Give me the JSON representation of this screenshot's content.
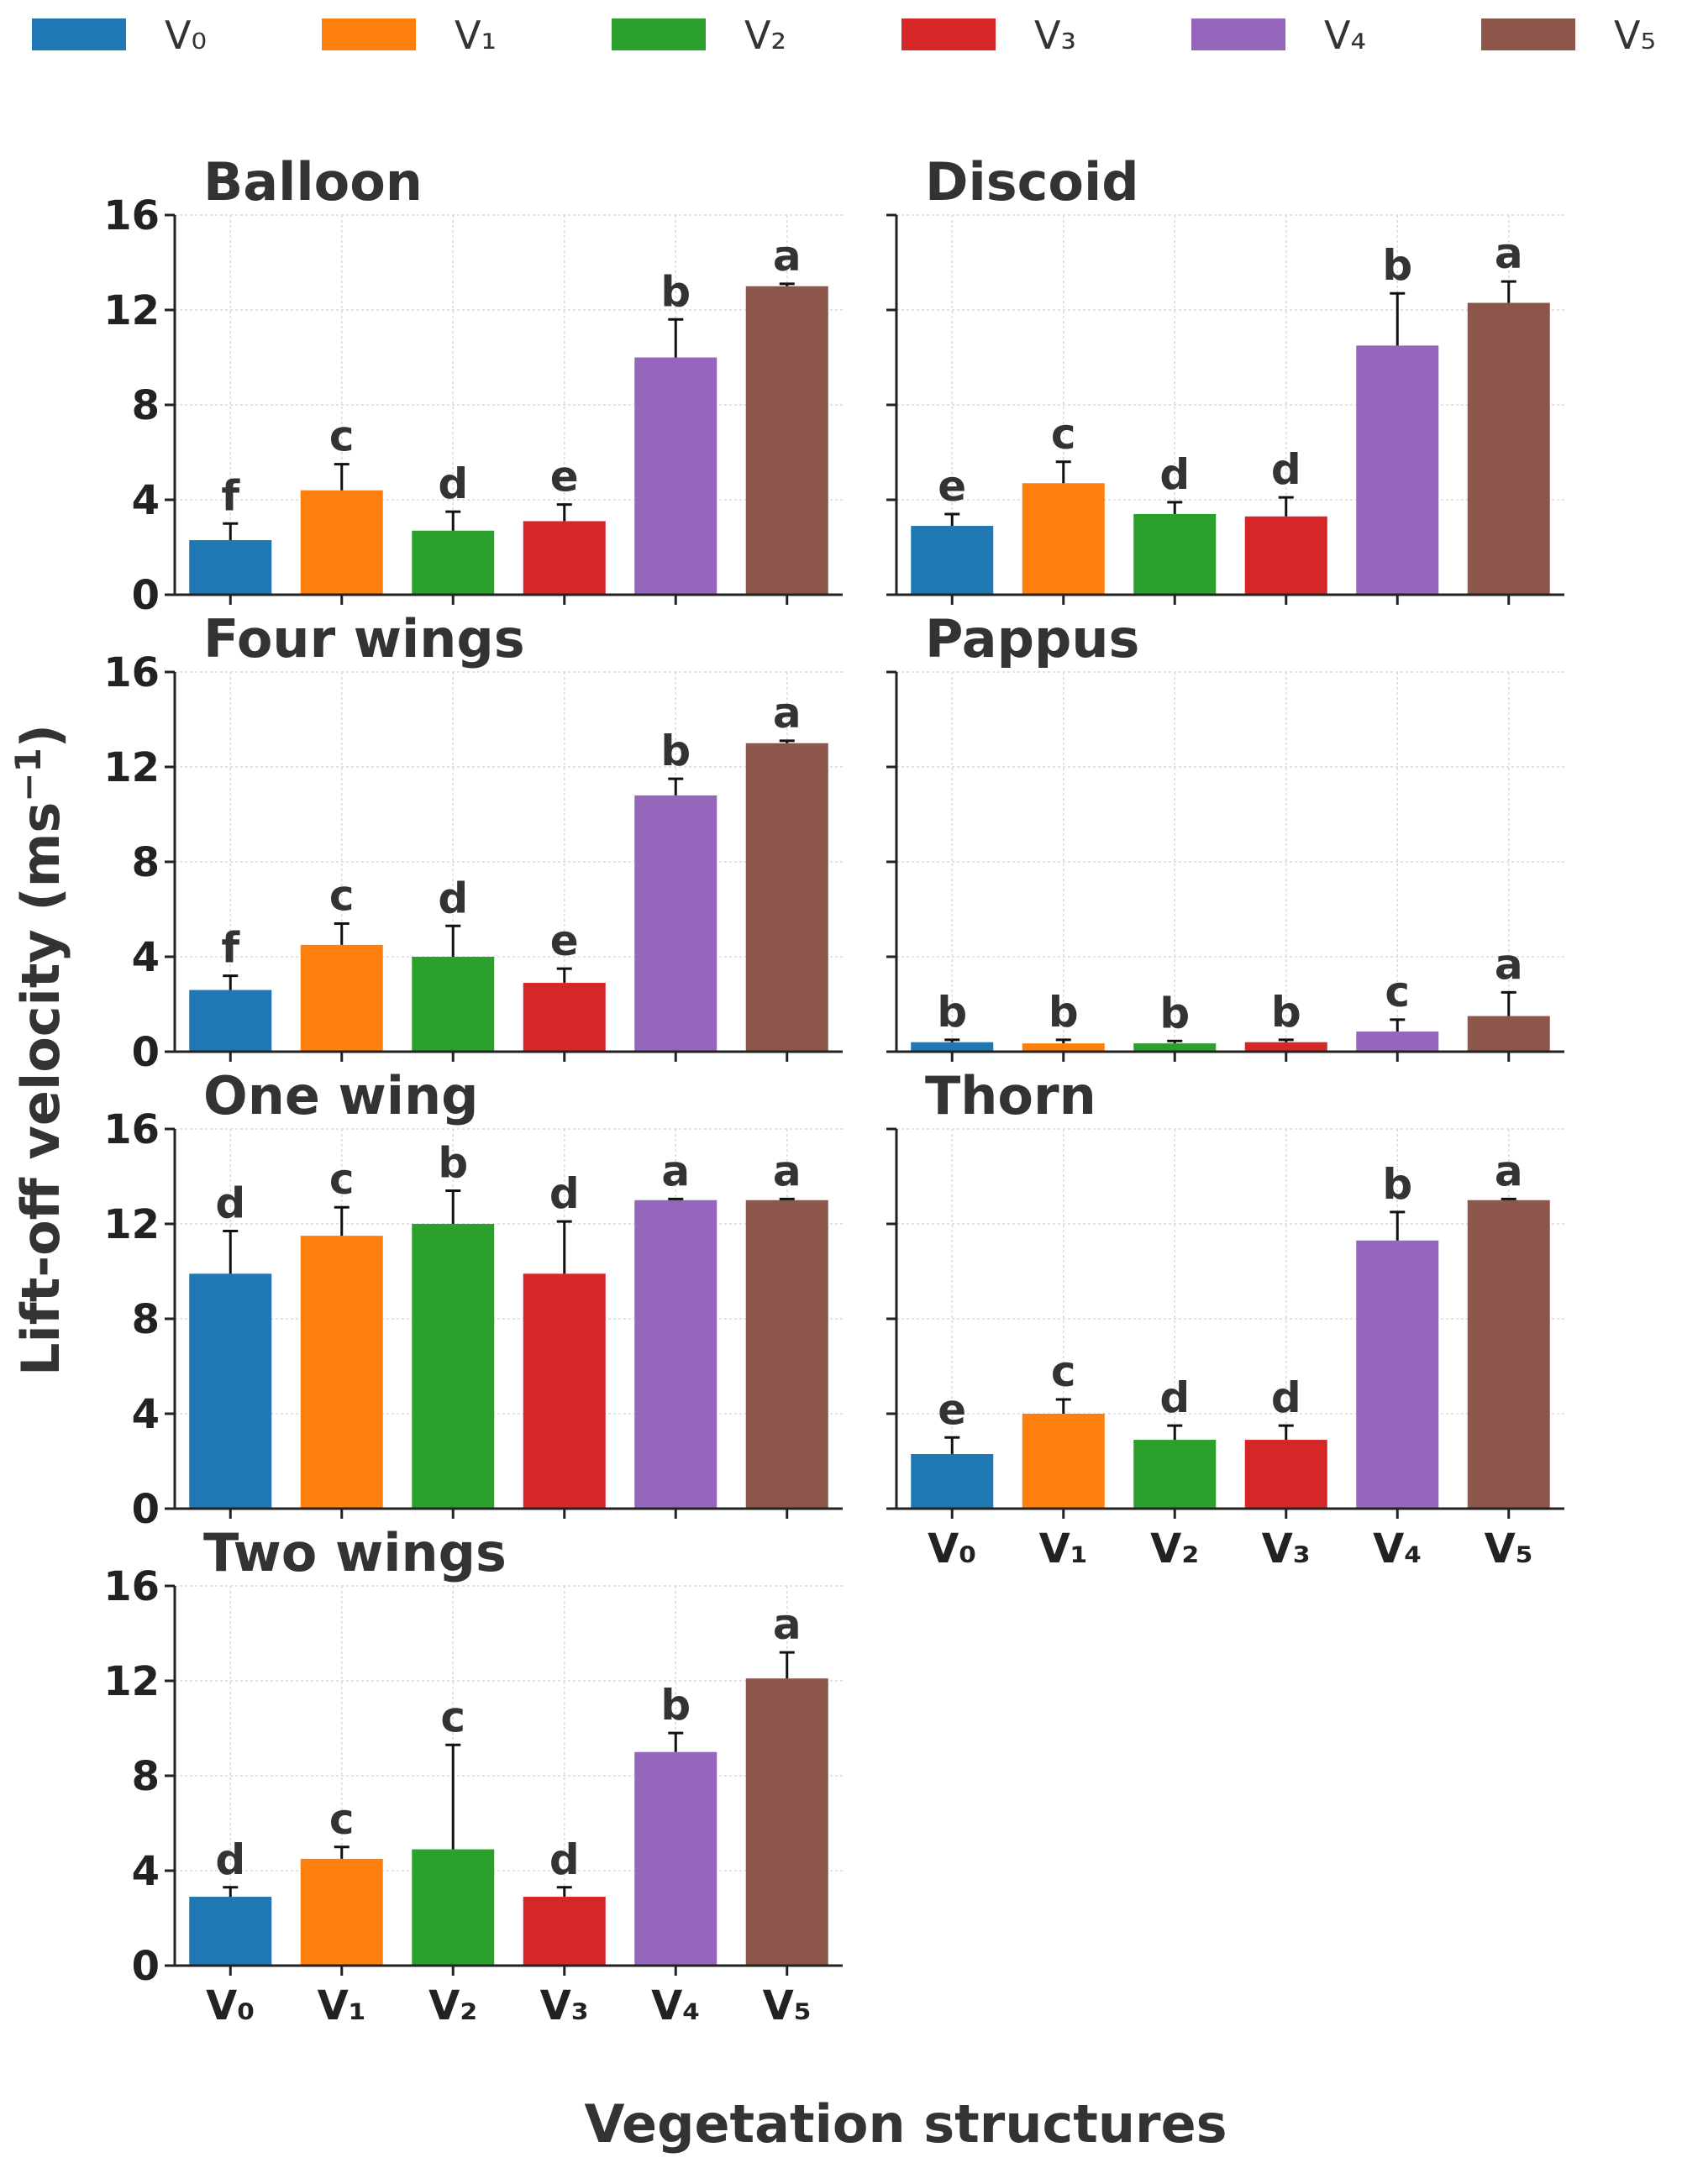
{
  "chart_data": {
    "type": "bar",
    "layout": "7 panels in a 4x2 grid with shared axes",
    "legend": {
      "position": "top",
      "entries": [
        {
          "label": "V₀",
          "color": "#1f77b4"
        },
        {
          "label": "V₁",
          "color": "#ff7f0e"
        },
        {
          "label": "V₂",
          "color": "#2ca02c"
        },
        {
          "label": "V₃",
          "color": "#d62728"
        },
        {
          "label": "V₄",
          "color": "#9467bd"
        },
        {
          "label": "V₅",
          "color": "#8c564b"
        }
      ]
    },
    "categories": [
      "V₀",
      "V₁",
      "V₂",
      "V₃",
      "V₄",
      "V₅"
    ],
    "xlabel": "Vegetation structures",
    "ylabel": "Lift-off velocity (ms",
    "ylabel_superscript": "−1",
    "ylabel_close": ")",
    "ylim": [
      0,
      16
    ],
    "yticks": [
      "0",
      "4",
      "8",
      "12",
      "16"
    ],
    "grid": true,
    "panels": [
      {
        "title": "Balloon",
        "values": [
          2.3,
          4.4,
          2.7,
          3.1,
          10.0,
          13.0
        ],
        "errors": [
          0.7,
          1.1,
          0.8,
          0.7,
          1.6,
          0.1
        ],
        "letters": [
          "f",
          "c",
          "d",
          "e",
          "b",
          "a"
        ]
      },
      {
        "title": "Discoid",
        "values": [
          2.9,
          4.7,
          3.4,
          3.3,
          10.5,
          12.3
        ],
        "errors": [
          0.5,
          0.9,
          0.5,
          0.8,
          2.2,
          0.9
        ],
        "letters": [
          "e",
          "c",
          "d",
          "d",
          "b",
          "a"
        ]
      },
      {
        "title": "Four wings",
        "values": [
          2.6,
          4.5,
          4.0,
          2.9,
          10.8,
          13.0
        ],
        "errors": [
          0.6,
          0.9,
          1.3,
          0.6,
          0.7,
          0.1
        ],
        "letters": [
          "f",
          "c",
          "d",
          "e",
          "b",
          "a"
        ]
      },
      {
        "title": "Pappus",
        "values": [
          0.4,
          0.35,
          0.35,
          0.4,
          0.85,
          1.5
        ],
        "errors": [
          0.1,
          0.15,
          0.1,
          0.1,
          0.5,
          1.0
        ],
        "letters": [
          "b",
          "b",
          "b",
          "b",
          "c",
          "a"
        ]
      },
      {
        "title": "One wing",
        "values": [
          9.9,
          11.5,
          12.0,
          9.9,
          13.0,
          13.0
        ],
        "errors": [
          1.8,
          1.2,
          1.4,
          2.2,
          0.05,
          0.05
        ],
        "letters": [
          "d",
          "c",
          "b",
          "d",
          "a",
          "a"
        ]
      },
      {
        "title": "Thorn",
        "values": [
          2.3,
          4.0,
          2.9,
          2.9,
          11.3,
          13.0
        ],
        "errors": [
          0.7,
          0.6,
          0.6,
          0.6,
          1.2,
          0.05
        ],
        "letters": [
          "e",
          "c",
          "d",
          "d",
          "b",
          "a"
        ]
      },
      {
        "title": "Two wings",
        "values": [
          2.9,
          4.5,
          4.9,
          2.9,
          9.0,
          12.1
        ],
        "errors": [
          0.4,
          0.5,
          4.4,
          0.4,
          0.8,
          1.1
        ],
        "letters": [
          "d",
          "c",
          "c",
          "d",
          "b",
          "a"
        ]
      }
    ]
  }
}
